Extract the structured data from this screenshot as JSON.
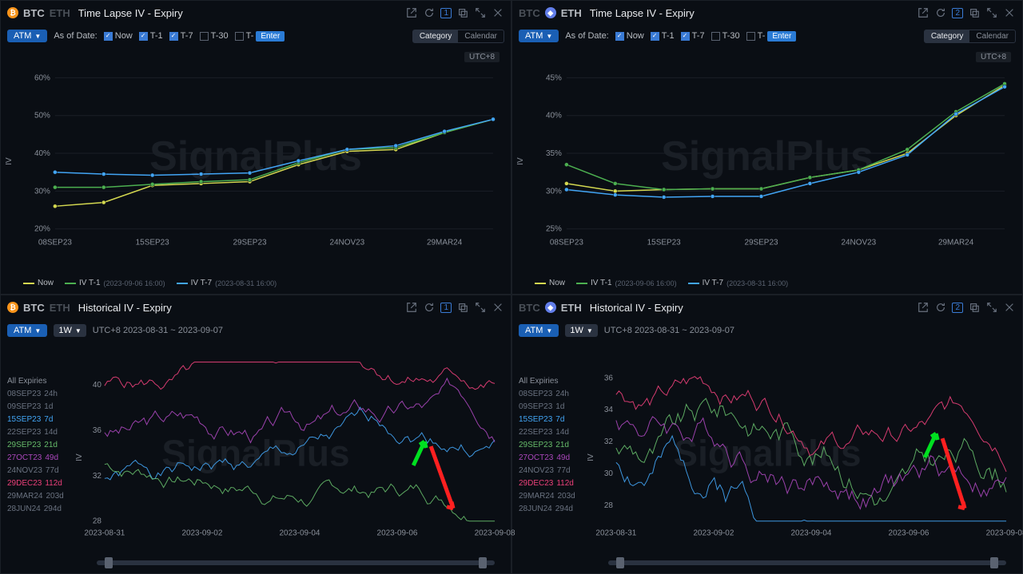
{
  "watermark": "SignalPlus",
  "utc_label": "UTC+8",
  "atm_label": "ATM",
  "asof_label": "As of Date:",
  "t_options": [
    {
      "label": "Now",
      "checked": true
    },
    {
      "label": "T-1",
      "checked": true
    },
    {
      "label": "T-7",
      "checked": true
    },
    {
      "label": "T-30",
      "checked": false
    },
    {
      "label": "T-",
      "checked": false,
      "input": "Enter"
    }
  ],
  "toggle": {
    "category": "Category",
    "calendar": "Calendar"
  },
  "icons": [
    "popout",
    "refresh",
    "badge",
    "copy",
    "expand",
    "close"
  ],
  "timelapse_title": "Time Lapse IV - Expiry",
  "historical_title": "Historical IV - Expiry",
  "btc_label": "BTC",
  "eth_label": "ETH",
  "range_1w": "1W",
  "date_range": "UTC+8 2023-08-31 ~ 2023-09-07",
  "btc_tl": {
    "ylim": [
      20,
      60
    ],
    "yticks": [
      20,
      30,
      40,
      50,
      60
    ],
    "xlabels": [
      "08SEP23",
      "15SEP23",
      "29SEP23",
      "24NOV23",
      "29MAR24"
    ],
    "series": [
      {
        "name": "Now",
        "color": "#d4d850",
        "pts": [
          [
            0,
            26
          ],
          [
            1,
            27
          ],
          [
            2,
            31.5
          ],
          [
            3,
            32
          ],
          [
            4,
            32.5
          ],
          [
            5,
            37
          ],
          [
            6,
            40.5
          ],
          [
            7,
            41
          ],
          [
            8,
            45.5
          ],
          [
            9,
            49
          ]
        ]
      },
      {
        "name": "IV T-1",
        "sub": "(2023-09-06 16:00)",
        "color": "#4caf50",
        "pts": [
          [
            0,
            31
          ],
          [
            1,
            31
          ],
          [
            2,
            31.8
          ],
          [
            3,
            32.5
          ],
          [
            4,
            33
          ],
          [
            5,
            37.5
          ],
          [
            6,
            41
          ],
          [
            7,
            41.5
          ],
          [
            8,
            45.5
          ],
          [
            9,
            49
          ]
        ]
      },
      {
        "name": "IV T-7",
        "sub": "(2023-08-31 16:00)",
        "color": "#42a5f5",
        "pts": [
          [
            0,
            35
          ],
          [
            1,
            34.5
          ],
          [
            2,
            34.2
          ],
          [
            3,
            34.5
          ],
          [
            4,
            34.8
          ],
          [
            5,
            38
          ],
          [
            6,
            41
          ],
          [
            7,
            42
          ],
          [
            8,
            45.8
          ],
          [
            9,
            49
          ]
        ]
      }
    ]
  },
  "eth_tl": {
    "ylim": [
      25,
      45
    ],
    "yticks": [
      25,
      30,
      35,
      40,
      45
    ],
    "xlabels": [
      "08SEP23",
      "15SEP23",
      "29SEP23",
      "24NOV23",
      "29MAR24"
    ],
    "series": [
      {
        "name": "Now",
        "color": "#d4d850",
        "pts": [
          [
            0,
            31
          ],
          [
            1,
            30
          ],
          [
            2,
            30.2
          ],
          [
            3,
            30.3
          ],
          [
            4,
            30.3
          ],
          [
            5,
            31.8
          ],
          [
            6,
            32.8
          ],
          [
            7,
            35
          ],
          [
            8,
            40
          ],
          [
            9,
            44
          ]
        ]
      },
      {
        "name": "IV T-1",
        "sub": "(2023-09-06 16:00)",
        "color": "#4caf50",
        "pts": [
          [
            0,
            33.5
          ],
          [
            1,
            31
          ],
          [
            2,
            30.2
          ],
          [
            3,
            30.3
          ],
          [
            4,
            30.3
          ],
          [
            5,
            31.8
          ],
          [
            6,
            32.8
          ],
          [
            7,
            35.5
          ],
          [
            8,
            40.5
          ],
          [
            9,
            44.2
          ]
        ]
      },
      {
        "name": "IV T-7",
        "sub": "(2023-08-31 16:00)",
        "color": "#42a5f5",
        "pts": [
          [
            0,
            30.2
          ],
          [
            1,
            29.5
          ],
          [
            2,
            29.2
          ],
          [
            3,
            29.3
          ],
          [
            4,
            29.3
          ],
          [
            5,
            31
          ],
          [
            6,
            32.5
          ],
          [
            7,
            34.8
          ],
          [
            8,
            40.2
          ],
          [
            9,
            43.8
          ]
        ]
      }
    ]
  },
  "expiries": [
    {
      "head": "All Expiries",
      "color": "#8a909a"
    },
    {
      "label": "08SEP23",
      "days": "24h",
      "color": "#6a7280"
    },
    {
      "label": "09SEP23",
      "days": "1d",
      "color": "#6a7280"
    },
    {
      "label": "15SEP23",
      "days": "7d",
      "color": "#42a5f5"
    },
    {
      "label": "22SEP23",
      "days": "14d",
      "color": "#6a7280"
    },
    {
      "label": "29SEP23",
      "days": "21d",
      "color": "#66bb6a"
    },
    {
      "label": "27OCT23",
      "days": "49d",
      "color": "#ab47bc"
    },
    {
      "label": "24NOV23",
      "days": "77d",
      "color": "#6a7280"
    },
    {
      "label": "29DEC23",
      "days": "112d",
      "color": "#ec407a"
    },
    {
      "label": "29MAR24",
      "days": "203d",
      "color": "#6a7280"
    },
    {
      "label": "28JUN24",
      "days": "294d",
      "color": "#6a7280"
    }
  ],
  "hist_xlabels": [
    "2023-08-31",
    "2023-09-02",
    "2023-09-04",
    "2023-09-06",
    "2023-09-08"
  ],
  "btc_hist": {
    "ylim": [
      28,
      42
    ],
    "yticks": [
      28,
      32,
      36,
      40
    ]
  },
  "eth_hist": {
    "ylim": [
      27,
      37
    ],
    "yticks": [
      28,
      30,
      32,
      34,
      36
    ]
  },
  "hist_colors": {
    "s1": "#42a5f5",
    "s2": "#66bb6a",
    "s3": "#ab47bc",
    "s4": "#ec407a"
  },
  "arrows": {
    "up": "#00e020",
    "down": "#ff2020"
  }
}
